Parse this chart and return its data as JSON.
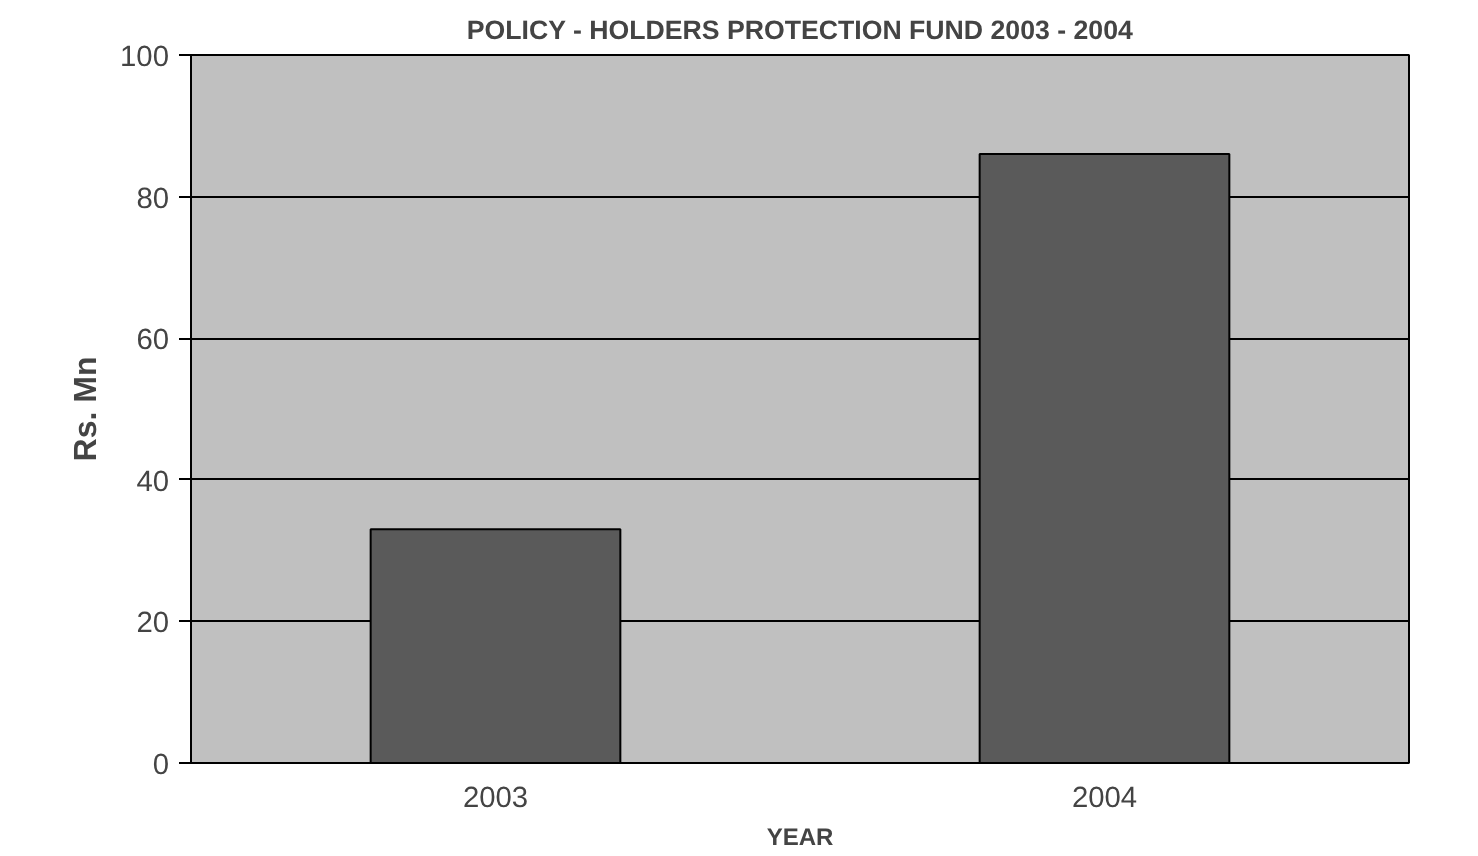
{
  "chart_data": {
    "type": "bar",
    "title": "POLICY - HOLDERS PROTECTION FUND 2003 - 2004",
    "xlabel": "YEAR",
    "ylabel": "Rs. Mn",
    "categories": [
      "2003",
      "2004"
    ],
    "values": [
      33,
      86
    ],
    "color": "#5a5a5a",
    "ylim": [
      0,
      100
    ],
    "yticks": [
      0,
      20,
      40,
      60,
      80,
      100
    ],
    "grid": "y"
  }
}
